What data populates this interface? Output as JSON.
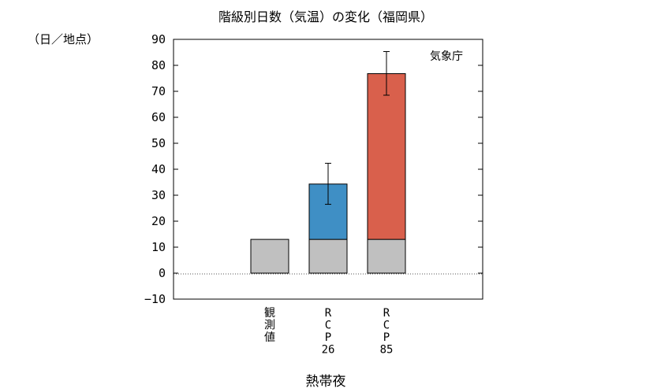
{
  "chart_data": {
    "type": "bar",
    "title": "階級別日数（気温）の変化（福岡県）",
    "ylabel": "（日／地点）",
    "xlabel": "熱帯夜",
    "source_label": "気象庁",
    "ylim": [
      -10,
      90
    ],
    "yticks": [
      -10,
      0,
      10,
      20,
      30,
      40,
      50,
      60,
      70,
      80,
      90
    ],
    "yticks_label": [
      "−10",
      "0",
      "10",
      "20",
      "30",
      "40",
      "50",
      "60",
      "70",
      "80",
      "90"
    ],
    "grid": false,
    "zero_line": "dotted",
    "categories": [
      {
        "name": "観測値",
        "lines": [
          "観",
          "測",
          "値"
        ]
      },
      {
        "name": "RCP26",
        "lines": [
          "R",
          "C",
          "P",
          "26"
        ]
      },
      {
        "name": "RCP85",
        "lines": [
          "R",
          "C",
          "P",
          "85"
        ]
      }
    ],
    "series": [
      {
        "name": "",
        "role": "base",
        "color": "#c0c0c0",
        "values": [
          13,
          13,
          13
        ]
      },
      {
        "name": "",
        "role": "change",
        "values": [
          0,
          21.3,
          63.8
        ],
        "colors": [
          "#c0c0c0",
          "#3f8fc5",
          "#d9604c"
        ]
      }
    ],
    "totals": [
      13,
      34.3,
      76.8
    ],
    "error_bars": [
      null,
      {
        "low": 26.5,
        "high": 42.3
      },
      {
        "low": 68.5,
        "high": 85.3
      }
    ]
  }
}
